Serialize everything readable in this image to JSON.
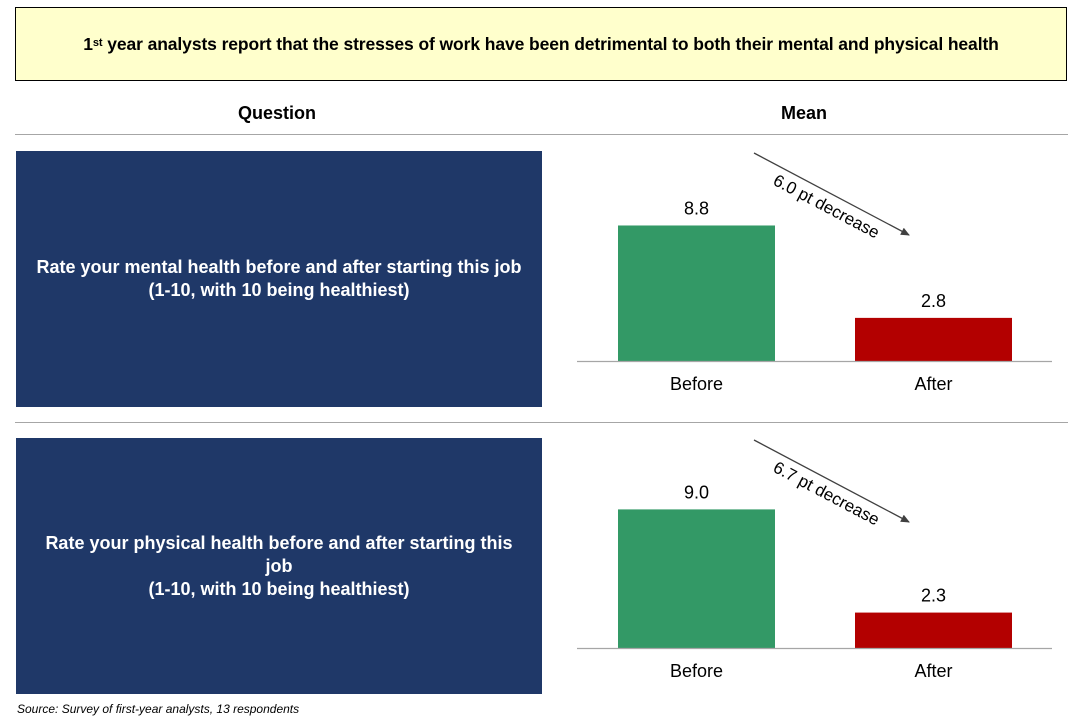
{
  "header": {
    "title_sup": "st",
    "title_prefix": "1",
    "title_rest": " year analysts report that the stresses of work have been detrimental to both their mental and physical health"
  },
  "columns": {
    "question": "Question",
    "mean": "Mean"
  },
  "questions": [
    {
      "line1": "Rate your mental health before and after starting this job",
      "line2": "(1-10, with 10 being healthiest)"
    },
    {
      "line1": "Rate your physical health before and after starting this job",
      "line2": "(1-10, with 10 being healthiest)"
    }
  ],
  "colors": {
    "before": "#339966",
    "after": "#b30000",
    "question_bg": "#1f3868",
    "title_bg": "#ffffcc"
  },
  "chart_data": [
    {
      "type": "bar",
      "categories": [
        "Before",
        "After"
      ],
      "values": [
        8.8,
        2.8
      ],
      "value_labels": [
        "8.8",
        "2.8"
      ],
      "annotation": "6.0 pt decrease",
      "title": "",
      "xlabel": "",
      "ylabel": "",
      "ylim": [
        0,
        10
      ],
      "grid": false
    },
    {
      "type": "bar",
      "categories": [
        "Before",
        "After"
      ],
      "values": [
        9.0,
        2.3
      ],
      "value_labels": [
        "9.0",
        "2.3"
      ],
      "annotation": "6.7 pt decrease",
      "title": "",
      "xlabel": "",
      "ylabel": "",
      "ylim": [
        0,
        10
      ],
      "grid": false
    }
  ],
  "source": "Source: Survey of first-year analysts, 13 respondents"
}
